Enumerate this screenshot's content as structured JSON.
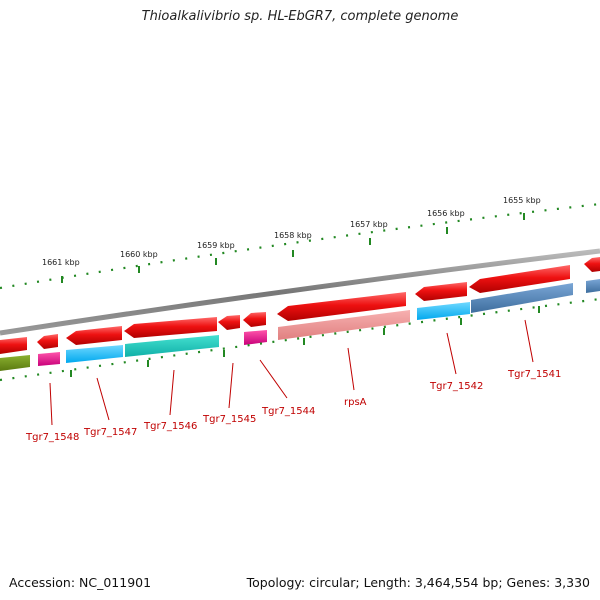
{
  "title": "Thioalkalivibrio sp. HL-EbGR7, complete genome",
  "footer": {
    "accession": "Accession: NC_011901",
    "summary": "Topology: circular; Length: 3,464,554 bp; Genes: 3,330"
  },
  "kbp_labels": [
    "1661 kbp",
    "1660 kbp",
    "1659 kbp",
    "1658 kbp",
    "1657 kbp",
    "1656 kbp",
    "1655 kbp"
  ],
  "gene_labels": [
    "Tgr7_1548",
    "Tgr7_1547",
    "Tgr7_1546",
    "Tgr7_1545",
    "Tgr7_1544",
    "rpsA",
    "Tgr7_1542",
    "Tgr7_1541"
  ],
  "colors": {
    "cds": "#ee1111",
    "backbone": "#888888",
    "tick": "#228822",
    "label": "#c00000"
  }
}
